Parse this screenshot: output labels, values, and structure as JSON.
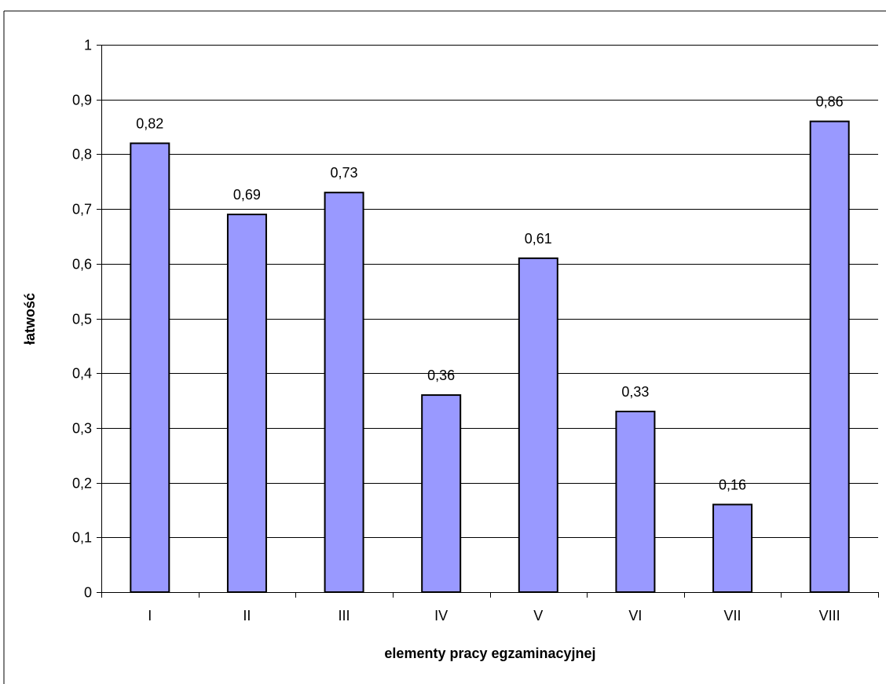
{
  "chart_data": {
    "type": "bar",
    "title": "",
    "xlabel": "elementy pracy egzaminacyjnej",
    "ylabel": "łatwość",
    "categories": [
      "I",
      "II",
      "III",
      "IV",
      "V",
      "VI",
      "VII",
      "VIII"
    ],
    "values": [
      0.82,
      0.69,
      0.73,
      0.36,
      0.61,
      0.33,
      0.16,
      0.86
    ],
    "data_labels": [
      "0,82",
      "0,69",
      "0,73",
      "0,36",
      "0,61",
      "0,33",
      "0,16",
      "0,86"
    ],
    "ylim": [
      0,
      1
    ],
    "y_ticks": [
      0,
      0.1,
      0.2,
      0.3,
      0.4,
      0.5,
      0.6,
      0.7,
      0.8,
      0.9,
      1
    ],
    "y_tick_labels": [
      "0",
      "0,1",
      "0,2",
      "0,3",
      "0,4",
      "0,5",
      "0,6",
      "0,7",
      "0,8",
      "0,9",
      "1"
    ],
    "grid": true,
    "legend": "none",
    "colors": {
      "bar_fill": "#9999FF",
      "bar_stroke": "#000000",
      "gridline": "#000000",
      "axis": "#000000",
      "frame": "#000000"
    }
  }
}
